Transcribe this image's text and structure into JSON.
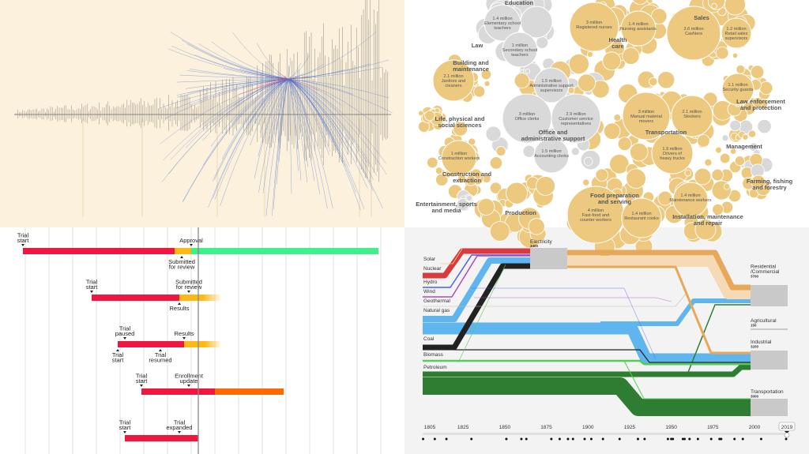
{
  "chart_data": [
    {
      "type": "line",
      "colors": {
        "background": "#fbf1dc",
        "marks": "#333333",
        "highlight": "#4a6fd0",
        "focus": "#e0405a"
      }
    },
    {
      "type": "bubble",
      "colors": {
        "highlighted": "#ecc97f",
        "other": "#d9d9d9"
      },
      "groups": [
        {
          "name": [
            "Education"
          ],
          "color": "other",
          "jobs": [
            {
              "value": "1.4 million",
              "title": [
                "Elementary school",
                "teachers"
              ]
            },
            {
              "value": "1 million",
              "title": [
                "Secondary school",
                "teachers"
              ]
            }
          ]
        },
        {
          "name": [
            "Health",
            "care"
          ],
          "color": "highlighted",
          "jobs": [
            {
              "value": "3 million",
              "title": [
                "Registered nurses"
              ]
            },
            {
              "value": "1.4 million",
              "title": [
                "Nursing assistants"
              ]
            }
          ]
        },
        {
          "name": [
            "Sales"
          ],
          "color": "highlighted",
          "jobs": [
            {
              "value": "3.6 million",
              "title": [
                "Cashiers"
              ]
            },
            {
              "value": "1.2 million",
              "title": [
                "Retail sales",
                "supervisors"
              ]
            }
          ]
        },
        {
          "name": [
            "Law"
          ],
          "color": "other",
          "jobs": []
        },
        {
          "name": [
            "Building and",
            "maintenance"
          ],
          "color": "highlighted",
          "jobs": [
            {
              "value": "2.1 million",
              "title": [
                "Janitors and",
                "cleaners"
              ]
            }
          ]
        },
        {
          "name": [
            "Office and",
            "administrative support"
          ],
          "color": "other",
          "jobs": [
            {
              "value": "1.5 million",
              "title": [
                "Administrative support",
                "supervisors"
              ]
            },
            {
              "value": "3 million",
              "title": [
                "Office clerks"
              ]
            },
            {
              "value": "2.9 million",
              "title": [
                "Customer service",
                "representatives"
              ]
            },
            {
              "value": "1.5 million",
              "title": [
                "Accounting clerks"
              ]
            }
          ]
        },
        {
          "name": [
            "Transportation"
          ],
          "color": "highlighted",
          "jobs": [
            {
              "value": "3 million",
              "title": [
                "Manual material",
                "movers"
              ]
            },
            {
              "value": "2.1 million",
              "title": [
                "Stockers"
              ]
            },
            {
              "value": "1.9 million",
              "title": [
                "Drivers of",
                "heavy trucks"
              ]
            }
          ]
        },
        {
          "name": [
            "Life, physical and",
            "social sciences"
          ],
          "color": "highlighted",
          "jobs": []
        },
        {
          "name": [
            "Construction and",
            "extraction"
          ],
          "color": "highlighted",
          "jobs": [
            {
              "value": "1 million",
              "title": [
                "Construction workers"
              ]
            }
          ]
        },
        {
          "name": [
            "Law enforcement",
            "and protection"
          ],
          "color": "highlighted",
          "jobs": [
            {
              "value": "1.1 million",
              "title": [
                "Security guards"
              ]
            }
          ]
        },
        {
          "name": [
            "Management"
          ],
          "color": "other",
          "jobs": []
        },
        {
          "name": [
            "Farming, fishing",
            "and forestry"
          ],
          "color": "highlighted",
          "jobs": []
        },
        {
          "name": [
            "Entertainment, sports",
            "and media"
          ],
          "color": "other",
          "jobs": []
        },
        {
          "name": [
            "Production"
          ],
          "color": "highlighted",
          "jobs": []
        },
        {
          "name": [
            "Food preparation",
            "and serving"
          ],
          "color": "highlighted",
          "jobs": [
            {
              "value": "4 million",
              "title": [
                "Fast-food and",
                "counter workers"
              ]
            },
            {
              "value": "1.4 million",
              "title": [
                "Restaurant cooks"
              ]
            }
          ]
        },
        {
          "name": [
            "Installation, maintenance",
            "and repair"
          ],
          "color": "highlighted",
          "jobs": [
            {
              "value": "1.4 million",
              "title": [
                "Maintenance workers"
              ]
            }
          ]
        }
      ]
    },
    {
      "type": "timeline",
      "colors": {
        "red": "#f0163f",
        "yellow": "#fdb913",
        "green": "#3ef08a",
        "orange": "#ff6a00",
        "today": "#888888"
      },
      "today": 7.3,
      "rows": [
        {
          "segments": [
            {
              "status": "red",
              "start": -0.1,
              "end": 6.3
            },
            {
              "status": "yellow",
              "start": 6.3,
              "end": 7.0
            },
            {
              "status": "green",
              "start": 7.0,
              "end": 14.9
            }
          ],
          "events": [
            {
              "label": [
                "Trial",
                "start"
              ],
              "at": -0.1,
              "side": "above"
            },
            {
              "label": [
                "Approval"
              ],
              "at": 7.0,
              "side": "above"
            },
            {
              "label": [
                "Submitted",
                "for review"
              ],
              "at": 6.6,
              "side": "below"
            }
          ]
        },
        {
          "segments": [
            {
              "status": "red",
              "start": 2.8,
              "end": 6.5
            },
            {
              "status": "yellow",
              "start": 6.5,
              "end": 8.3,
              "fade": true
            }
          ],
          "events": [
            {
              "label": [
                "Trial",
                "start"
              ],
              "at": 2.8,
              "side": "above"
            },
            {
              "label": [
                "Submitted",
                "for review"
              ],
              "at": 6.9,
              "side": "above"
            },
            {
              "label": [
                "Results"
              ],
              "at": 6.5,
              "side": "below"
            }
          ]
        },
        {
          "segments": [
            {
              "status": "red",
              "start": 3.9,
              "end": 6.7
            },
            {
              "status": "yellow",
              "start": 6.7,
              "end": 8.3,
              "fade": true
            }
          ],
          "events": [
            {
              "label": [
                "Trial",
                "paused"
              ],
              "at": 4.2,
              "side": "above"
            },
            {
              "label": [
                "Results"
              ],
              "at": 6.7,
              "side": "above"
            },
            {
              "label": [
                "Trial",
                "start"
              ],
              "at": 3.9,
              "side": "below"
            },
            {
              "label": [
                "Trial",
                "resumed"
              ],
              "at": 5.7,
              "side": "below"
            }
          ]
        },
        {
          "segments": [
            {
              "status": "red",
              "start": 4.9,
              "end": 8.0
            },
            {
              "status": "orange",
              "start": 8.0,
              "end": 10.9
            }
          ],
          "events": [
            {
              "label": [
                "Trial",
                "start"
              ],
              "at": 4.9,
              "side": "above"
            },
            {
              "label": [
                "Enrollment",
                "update"
              ],
              "at": 6.9,
              "side": "above"
            }
          ]
        },
        {
          "segments": [
            {
              "status": "red",
              "start": 4.2,
              "end": 7.3
            }
          ],
          "events": [
            {
              "label": [
                "Trial",
                "start"
              ],
              "at": 4.2,
              "side": "above"
            },
            {
              "label": [
                "Trial",
                "expanded"
              ],
              "at": 6.5,
              "side": "above"
            }
          ]
        }
      ]
    },
    {
      "type": "sankey",
      "sources": [
        {
          "name": "Solar",
          "color": "#f5d76e"
        },
        {
          "name": "Nuclear",
          "color": "#d93a3f"
        },
        {
          "name": "Hydro",
          "color": "#4a5cf0"
        },
        {
          "name": "Wind",
          "color": "#b04ab8"
        },
        {
          "name": "Geothermal",
          "color": "#d6b9a6"
        },
        {
          "name": "Natural gas",
          "color": "#5fb6ef"
        },
        {
          "name": "Coal",
          "color": "#222222"
        },
        {
          "name": "Biomass",
          "color": "#55cc55"
        },
        {
          "name": "Petroleum",
          "color": "#2e7d32"
        }
      ],
      "electricity": {
        "name": "Electricity",
        "value": "3400",
        "color": "#e8a85a"
      },
      "sinks": [
        {
          "name": [
            "Residential",
            "/Commercial"
          ],
          "value": "3700"
        },
        {
          "name": [
            "Agricultural"
          ],
          "value": "150"
        },
        {
          "name": [
            "Industrial"
          ],
          "value": "3200"
        },
        {
          "name": [
            "Transportation"
          ],
          "value": "3000"
        }
      ],
      "years": [
        "1805",
        "1825",
        "1850",
        "1875",
        "1900",
        "1925",
        "1950",
        "1975",
        "2000"
      ],
      "selected_year": "2019",
      "event_years": [
        1801,
        1808,
        1815,
        1830,
        1851,
        1860,
        1863,
        1878,
        1883,
        1888,
        1891,
        1898,
        1902,
        1909,
        1919,
        1930,
        1934,
        1948,
        1950,
        1951,
        1957,
        1958,
        1961,
        1966,
        1974,
        1979,
        1980,
        1988,
        1993,
        2004,
        2019
      ]
    }
  ]
}
